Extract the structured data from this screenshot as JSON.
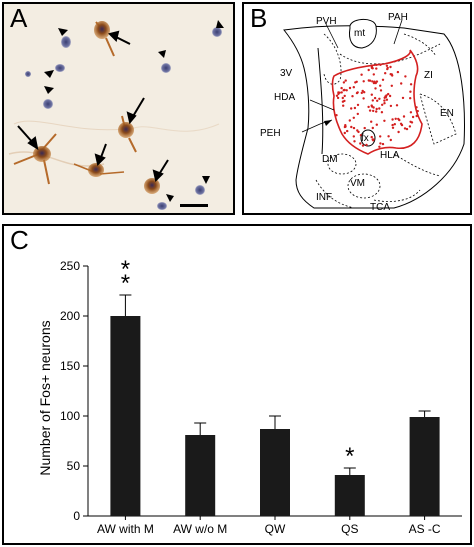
{
  "panels": {
    "a": {
      "letter": "A"
    },
    "b": {
      "letter": "B",
      "labels": {
        "pvh": "PVH",
        "pah": "PAH",
        "mt": "mt",
        "v3": "3V",
        "zi": "ZI",
        "hda": "HDA",
        "en": "EN",
        "fx": "fx",
        "hla": "HLA",
        "peh": "PEH",
        "dm": "DM",
        "vm": "VM",
        "inf": "INF",
        "tca": "TCA"
      }
    },
    "c": {
      "letter": "C"
    }
  },
  "chart_data": {
    "type": "bar",
    "categories": [
      "AW with M",
      "AW w/o M",
      "QW",
      "QS",
      "AS -C"
    ],
    "values": [
      200,
      81,
      87,
      41,
      99
    ],
    "errors": [
      21,
      12,
      13,
      7,
      6
    ],
    "significance": [
      "**",
      "",
      "",
      "*",
      ""
    ],
    "ylabel": "Number of Fos+ neurons",
    "yticks": [
      0,
      50,
      100,
      150,
      200,
      250
    ],
    "ylim": [
      0,
      250
    ],
    "bar_color": "#1a1a1a",
    "grid": false
  }
}
